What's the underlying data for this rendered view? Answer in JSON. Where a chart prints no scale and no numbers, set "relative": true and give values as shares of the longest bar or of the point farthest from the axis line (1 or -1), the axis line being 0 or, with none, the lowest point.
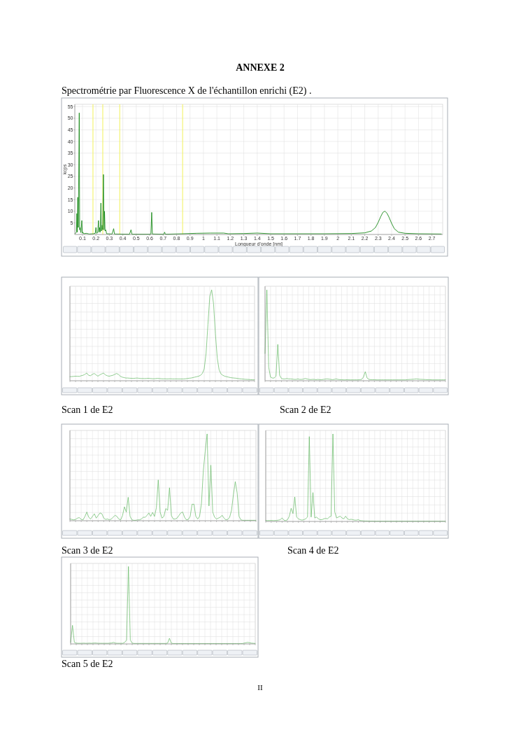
{
  "chart_data": [
    {
      "type": "line",
      "title": "ANNEXE 2",
      "subtitle": "Spectrométrie par Fluorescence X de l'échantillon enrichi (E2) .",
      "xlabel": "Longueur d'onde [nm]",
      "ylabel": "kcps",
      "x": [
        0.045,
        0.055,
        0.058,
        0.061,
        0.065,
        0.069,
        0.076,
        0.079,
        0.082,
        0.088,
        0.095,
        0.099,
        0.102,
        0.11,
        0.127,
        0.15,
        0.18,
        0.195,
        0.2,
        0.205,
        0.213,
        0.219,
        0.223,
        0.228,
        0.232,
        0.237,
        0.241,
        0.246,
        0.25,
        0.256,
        0.26,
        0.264,
        0.268,
        0.273,
        0.28,
        0.32,
        0.332,
        0.338,
        0.45,
        0.461,
        0.468,
        0.6,
        0.609,
        0.615,
        0.62,
        0.705,
        0.711,
        0.717,
        0.84,
        0.95,
        1.05,
        1.15,
        1.186,
        1.3,
        1.4,
        1.5,
        1.7,
        1.9,
        2.1,
        2.2,
        2.25,
        2.28,
        2.3,
        2.32,
        2.335,
        2.35,
        2.365,
        2.38,
        2.4,
        2.42,
        2.45,
        2.5,
        2.6,
        2.77
      ],
      "values": [
        0.3,
        1,
        9,
        1,
        16,
        3,
        52.3,
        2,
        3,
        0.8,
        6,
        0.5,
        1,
        0.3,
        0.5,
        0.2,
        0.3,
        0.5,
        3,
        0.5,
        0.8,
        6,
        1,
        3,
        1,
        13.5,
        1.5,
        4,
        2,
        25.8,
        2,
        10,
        1.5,
        2,
        0.3,
        0.2,
        2.5,
        0.2,
        0.1,
        2,
        0.1,
        0.1,
        0.2,
        9.5,
        0.2,
        0.1,
        1,
        0.1,
        0.3,
        0.5,
        0.6,
        0.6,
        0.3,
        0.4,
        0.6,
        0.3,
        0.3,
        0.3,
        0.4,
        0.7,
        1.5,
        3,
        5.2,
        7.8,
        9.5,
        10,
        9.2,
        7.5,
        4.8,
        2.5,
        1,
        0.5,
        0.3,
        0.2
      ],
      "color": "#1a8a1a",
      "xlim": [
        0.043,
        2.78
      ],
      "xticks": [
        0.1,
        0.2,
        0.3,
        0.4,
        0.5,
        0.6,
        0.7,
        0.8,
        0.9,
        1,
        1.1,
        1.2,
        1.3,
        1.4,
        1.5,
        1.6,
        1.7,
        1.8,
        1.9,
        2,
        2.1,
        2.2,
        2.3,
        2.4,
        2.5,
        2.6,
        2.7
      ],
      "ylim": [
        0,
        56
      ],
      "yticks": [
        5,
        10,
        15,
        20,
        25,
        30,
        35,
        40,
        45,
        50,
        55
      ],
      "grid": true,
      "ref_lines": [
        {
          "axis": "x",
          "value": 0.178,
          "color": "#f2f25a"
        },
        {
          "axis": "x",
          "value": 0.251,
          "color": "#f2f25a"
        },
        {
          "axis": "x",
          "value": 0.377,
          "color": "#f2f25a"
        },
        {
          "axis": "x",
          "value": 0.845,
          "color": "#f2f25a"
        }
      ]
    },
    {
      "type": "line",
      "relative": true,
      "grid": true,
      "color": "#62b862",
      "annotations": [
        "Scan 1 de E2"
      ],
      "categories": [
        null,
        null,
        null,
        null,
        null,
        null,
        null,
        null,
        null,
        null,
        null,
        null,
        null,
        null,
        null,
        null,
        null,
        null,
        null,
        null,
        null,
        null,
        null,
        null,
        null,
        null,
        null,
        null,
        null,
        null,
        null,
        null,
        null,
        null,
        null,
        null,
        null,
        null,
        null,
        null,
        null,
        null,
        null,
        null,
        null,
        null,
        null,
        null,
        null,
        null,
        null,
        null,
        null,
        null,
        null,
        null,
        null,
        null,
        null,
        null,
        null,
        null,
        null,
        null,
        null,
        null,
        null,
        null,
        null,
        null,
        null,
        null,
        null,
        null,
        null,
        null,
        null,
        null,
        null,
        null,
        null,
        null,
        null,
        null,
        null,
        null,
        null,
        null,
        null,
        null,
        null,
        null,
        null,
        null,
        null,
        null,
        null,
        null,
        null,
        null
      ],
      "values": [
        0.045,
        0.046,
        0.048,
        0.05,
        0.05,
        0.048,
        0.055,
        0.06,
        0.07,
        0.085,
        0.06,
        0.055,
        0.07,
        0.08,
        0.065,
        0.05,
        0.065,
        0.075,
        0.085,
        0.065,
        0.055,
        0.05,
        0.055,
        0.06,
        0.07,
        0.08,
        0.07,
        0.05,
        0.04,
        0.035,
        0.03,
        0.03,
        0.028,
        0.027,
        0.026,
        0.028,
        0.03,
        0.027,
        0.025,
        0.025,
        0.024,
        0.025,
        0.027,
        0.025,
        0.023,
        0.022,
        0.024,
        0.026,
        0.024,
        0.022,
        0.021,
        0.022,
        0.02,
        0.021,
        0.022,
        0.02,
        0.02,
        0.021,
        0.02,
        0.02,
        0.02,
        0.02,
        0.022,
        0.025,
        0.028,
        0.03,
        0.035,
        0.04,
        0.045,
        0.05,
        0.06,
        0.08,
        0.13,
        0.3,
        0.62,
        0.93,
        1,
        0.85,
        0.52,
        0.25,
        0.12,
        0.075,
        0.06,
        0.05,
        0.045,
        0.04,
        0.035,
        0.032,
        0.03,
        0.028,
        0.025,
        0.022,
        0.02,
        0.018,
        0.016,
        0.015,
        0.014,
        0.012,
        0.011,
        0.01
      ]
    },
    {
      "type": "line",
      "relative": true,
      "grid": true,
      "color": "#62b862",
      "annotations": [
        "Scan 2 de E2"
      ],
      "categories": [
        null,
        null,
        null,
        null,
        null,
        null,
        null,
        null,
        null,
        null,
        null,
        null,
        null,
        null,
        null,
        null,
        null,
        null,
        null,
        null,
        null,
        null,
        null,
        null,
        null,
        null,
        null,
        null,
        null,
        null,
        null,
        null,
        null,
        null,
        null,
        null,
        null,
        null,
        null,
        null,
        null,
        null,
        null,
        null,
        null,
        null,
        null,
        null,
        null,
        null,
        null,
        null,
        null,
        null,
        null,
        null,
        null,
        null,
        null,
        null,
        null,
        null,
        null,
        null,
        null,
        null,
        null,
        null,
        null,
        null,
        null,
        null,
        null,
        null,
        null,
        null,
        null,
        null,
        null,
        null,
        null,
        null,
        null,
        null,
        null,
        null,
        null,
        null,
        null,
        null,
        null,
        null,
        null,
        null,
        null,
        null,
        null,
        null,
        null,
        null
      ],
      "values": [
        0.3,
        1,
        0.15,
        0.04,
        0.03,
        0.03,
        0.05,
        0.4,
        0.06,
        0.025,
        0.02,
        0.02,
        0.025,
        0.02,
        0.02,
        0.018,
        0.015,
        0.015,
        0.02,
        0.015,
        0.015,
        0.018,
        0.025,
        0.02,
        0.015,
        0.013,
        0.015,
        0.015,
        0.012,
        0.015,
        0.012,
        0.012,
        0.015,
        0.018,
        0.02,
        0.018,
        0.015,
        0.012,
        0.015,
        0.02,
        0.015,
        0.012,
        0.012,
        0.01,
        0.01,
        0.012,
        0.01,
        0.01,
        0.01,
        0.01,
        0.01,
        0.01,
        0.012,
        0.015,
        0.04,
        0.1,
        0.03,
        0.015,
        0.012,
        0.012,
        0.012,
        0.01,
        0.01,
        0.01,
        0.01,
        0.01,
        0.01,
        0.01,
        0.01,
        0.01,
        0.01,
        0.01,
        0.01,
        0.01,
        0.01,
        0.01,
        0.01,
        0.01,
        0.012,
        0.014,
        0.015,
        0.016,
        0.018,
        0.02,
        0.018,
        0.016,
        0.015,
        0.014,
        0.013,
        0.012,
        0.012,
        0.011,
        0.01,
        0.01,
        0.01,
        0.01,
        0.01,
        0.01,
        0.01,
        0.01
      ]
    },
    {
      "type": "line",
      "relative": true,
      "grid": true,
      "color": "#62b862",
      "annotations": [
        "Scan 3 de E2"
      ],
      "categories": [
        null,
        null,
        null,
        null,
        null,
        null,
        null,
        null,
        null,
        null,
        null,
        null,
        null,
        null,
        null,
        null,
        null,
        null,
        null,
        null,
        null,
        null,
        null,
        null,
        null,
        null,
        null,
        null,
        null,
        null,
        null,
        null,
        null,
        null,
        null,
        null,
        null,
        null,
        null,
        null,
        null,
        null,
        null,
        null,
        null,
        null,
        null,
        null,
        null,
        null,
        null,
        null,
        null,
        null,
        null,
        null,
        null,
        null,
        null,
        null,
        null,
        null,
        null,
        null,
        null,
        null,
        null,
        null,
        null,
        null,
        null,
        null,
        null,
        null,
        null,
        null,
        null,
        null,
        null,
        null,
        null,
        null,
        null,
        null,
        null,
        null,
        null,
        null,
        null,
        null,
        null,
        null,
        null,
        null,
        null,
        null,
        null,
        null,
        null,
        null
      ],
      "values": [
        0.02,
        0.015,
        0.01,
        0.015,
        0.03,
        0.036,
        0.015,
        0.01,
        0.05,
        0.1,
        0.04,
        0.02,
        0.05,
        0.08,
        0.03,
        0.06,
        0.09,
        0.08,
        0.03,
        0.015,
        0.02,
        0.01,
        0.02,
        0.04,
        0.063,
        0.05,
        0.02,
        0.01,
        0.06,
        0.16,
        0.1,
        0.27,
        0.05,
        0.01,
        0.005,
        0.005,
        0.01,
        0.01,
        0.02,
        0.04,
        0.04,
        0.06,
        0.09,
        0.05,
        0.096,
        0.05,
        0.15,
        0.47,
        0.1,
        0.03,
        0.05,
        0.14,
        0.12,
        0.38,
        0.06,
        0.02,
        0.02,
        0.03,
        0.06,
        0.09,
        0.1,
        0.04,
        0.01,
        0.015,
        0.05,
        0.19,
        0.19,
        0.05,
        0.02,
        0.05,
        0.2,
        0.58,
        0.8,
        1,
        0.17,
        0.64,
        0.1,
        0.04,
        0.02,
        0.03,
        0.04,
        0.063,
        0.03,
        0.01,
        0.015,
        0.04,
        0.12,
        0.3,
        0.45,
        0.32,
        0.05,
        0.01,
        0.005,
        0.005,
        0.005,
        0.005,
        0.005,
        0.005,
        0.005,
        0.005
      ]
    },
    {
      "type": "line",
      "relative": true,
      "grid": true,
      "color": "#62b862",
      "annotations": [
        "Scan 4 de E2"
      ],
      "categories": [
        null,
        null,
        null,
        null,
        null,
        null,
        null,
        null,
        null,
        null,
        null,
        null,
        null,
        null,
        null,
        null,
        null,
        null,
        null,
        null,
        null,
        null,
        null,
        null,
        null,
        null,
        null,
        null,
        null,
        null,
        null,
        null,
        null,
        null,
        null,
        null,
        null,
        null,
        null,
        null,
        null,
        null,
        null,
        null,
        null,
        null,
        null,
        null,
        null,
        null,
        null,
        null,
        null,
        null,
        null,
        null,
        null,
        null,
        null,
        null,
        null,
        null,
        null,
        null,
        null,
        null,
        null,
        null,
        null,
        null,
        null,
        null,
        null,
        null,
        null,
        null,
        null,
        null,
        null,
        null,
        null,
        null,
        null,
        null,
        null,
        null,
        null,
        null,
        null,
        null,
        null,
        null,
        null,
        null,
        null,
        null,
        null,
        null,
        null,
        null
      ],
      "values": [
        0.01,
        0.01,
        0.01,
        0.012,
        0.01,
        0.01,
        0.012,
        0.015,
        0.02,
        0.04,
        0.015,
        0.01,
        0.02,
        0.06,
        0.15,
        0.09,
        0.28,
        0.05,
        0.03,
        0.02,
        0.015,
        0.02,
        0.03,
        0.05,
        0.97,
        0.05,
        0.33,
        0.04,
        0.05,
        0.03,
        0.02,
        0.02,
        0.03,
        0.035,
        0.03,
        0.05,
        0.06,
        1,
        0.11,
        0.04,
        0.05,
        0.06,
        0.04,
        0.03,
        0.06,
        0.03,
        0.02,
        0.025,
        0.02,
        0.015,
        0.015,
        0.02,
        0.01,
        0.008,
        0.006,
        0.005,
        0.005,
        0.004,
        0.004,
        0.004,
        0.003,
        0.003,
        0.003,
        0.003,
        0.003,
        0.003,
        0.003,
        0.003,
        0.003,
        0.003,
        0.003,
        0.003,
        0.003,
        0.003,
        0.003,
        0.003,
        0.003,
        0.003,
        0.003,
        0.003,
        0.003,
        0.003,
        0.003,
        0.003,
        0.003,
        0.003,
        0.003,
        0.003,
        0.003,
        0.003,
        0.003,
        0.003,
        0.003,
        0.003,
        0.003,
        0.003,
        0.003,
        0.003,
        0.003,
        0.003
      ]
    },
    {
      "type": "line",
      "relative": true,
      "grid": true,
      "color": "#62b862",
      "annotations": [
        "Scan 5 de E2",
        "II"
      ],
      "categories": [
        null,
        null,
        null,
        null,
        null,
        null,
        null,
        null,
        null,
        null,
        null,
        null,
        null,
        null,
        null,
        null,
        null,
        null,
        null,
        null,
        null,
        null,
        null,
        null,
        null,
        null,
        null,
        null,
        null,
        null,
        null,
        null,
        null,
        null,
        null,
        null,
        null,
        null,
        null,
        null,
        null,
        null,
        null,
        null,
        null,
        null,
        null,
        null,
        null,
        null,
        null,
        null,
        null,
        null,
        null,
        null,
        null,
        null,
        null,
        null,
        null,
        null,
        null,
        null,
        null,
        null,
        null,
        null,
        null,
        null,
        null,
        null,
        null,
        null,
        null,
        null,
        null,
        null,
        null,
        null,
        null,
        null,
        null,
        null,
        null,
        null,
        null,
        null,
        null,
        null,
        null,
        null,
        null,
        null,
        null,
        null,
        null,
        null,
        null,
        null
      ],
      "values": [
        0.02,
        0.24,
        0.02,
        0.01,
        0.008,
        0.008,
        0.008,
        0.01,
        0.008,
        0.008,
        0.01,
        0.008,
        0.01,
        0.012,
        0.01,
        0.008,
        0.008,
        0.008,
        0.008,
        0.008,
        0.008,
        0.01,
        0.012,
        0.02,
        0.01,
        0.008,
        0.008,
        0.008,
        0.008,
        0.02,
        0.05,
        1,
        0.05,
        0.01,
        0.006,
        0.006,
        0.006,
        0.006,
        0.006,
        0.006,
        0.006,
        0.006,
        0.006,
        0.006,
        0.006,
        0.006,
        0.006,
        0.006,
        0.006,
        0.006,
        0.006,
        0.006,
        0.01,
        0.073,
        0.01,
        0.005,
        0.005,
        0.005,
        0.005,
        0.005,
        0.005,
        0.005,
        0.005,
        0.005,
        0.005,
        0.005,
        0.005,
        0.005,
        0.005,
        0.005,
        0.005,
        0.005,
        0.005,
        0.005,
        0.005,
        0.005,
        0.005,
        0.005,
        0.005,
        0.005,
        0.005,
        0.005,
        0.005,
        0.005,
        0.005,
        0.005,
        0.005,
        0.005,
        0.005,
        0.005,
        0.005,
        0.005,
        0.005,
        0.01,
        0.015,
        0.02,
        0.015,
        0.01,
        0.008,
        0.006
      ]
    }
  ]
}
